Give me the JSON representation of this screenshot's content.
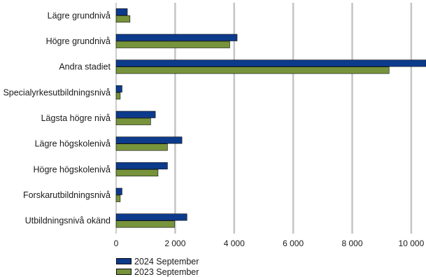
{
  "chart_data": {
    "type": "bar",
    "orientation": "horizontal",
    "categories": [
      "Lägre grundnivå",
      "Högre grundnivå",
      "Andra stadiet",
      "Specialyrkesutbildningsnivå",
      "Lägsta högre nivå",
      "Lägre högskolenivå",
      "Högre högskolenivå",
      "Forskarutbildningsnivå",
      "Utbildningsnivå okänd"
    ],
    "series": [
      {
        "name": "2024 September",
        "color": "#0d3b8c",
        "values": [
          380,
          4100,
          10500,
          200,
          1330,
          2230,
          1740,
          200,
          2400
        ]
      },
      {
        "name": "2023 September",
        "color": "#77933c",
        "values": [
          470,
          3850,
          9250,
          140,
          1170,
          1740,
          1420,
          140,
          1980
        ]
      }
    ],
    "xlim": [
      0,
      10500
    ],
    "ticks": [
      0,
      2000,
      4000,
      6000,
      8000,
      10000
    ],
    "tick_labels": [
      "0",
      "2 000",
      "4 000",
      "6 000",
      "8 000",
      "10 000"
    ],
    "grid": true,
    "legend_position": "bottom-left"
  }
}
